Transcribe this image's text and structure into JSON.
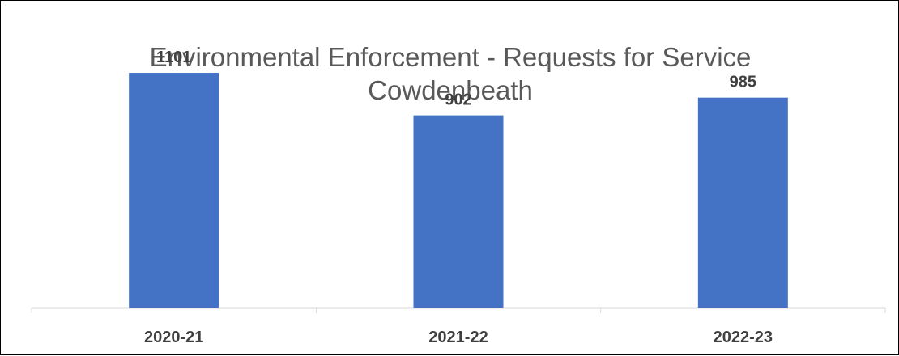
{
  "chart_data": {
    "type": "bar",
    "title": "Environmental Enforcement - Requests for Service",
    "subtitle": "Cowdenbeath",
    "categories": [
      "2020-21",
      "2021-22",
      "2022-23"
    ],
    "values": [
      1101,
      902,
      985
    ],
    "ylim": [
      0,
      1400
    ],
    "grid": false,
    "legend": "none",
    "bar_color": "#4472C4",
    "axis_color": "#D9D9D9"
  }
}
